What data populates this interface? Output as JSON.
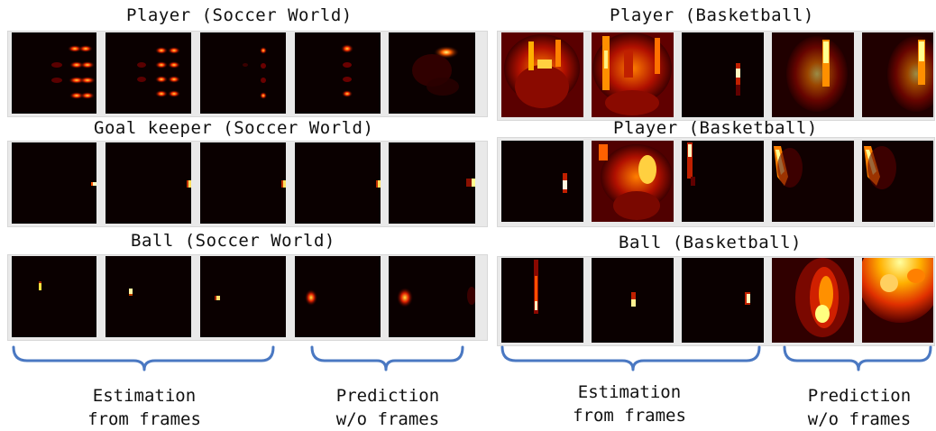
{
  "colors": {
    "heatmap_background": "#0a0000",
    "bracket": "#4a78c2"
  },
  "rows": [
    {
      "title": "Player (Soccer World)"
    },
    {
      "title": "Goal keeper (Soccer World)"
    },
    {
      "title": "Ball (Soccer World)"
    },
    {
      "title": "Player (Basketball)"
    },
    {
      "title": "Player (Basketball)"
    },
    {
      "title": "Ball (Basketball)"
    }
  ],
  "groups": [
    {
      "line1": "Estimation",
      "line2": "from frames"
    },
    {
      "line1": "Prediction",
      "line2": "w/o frames"
    },
    {
      "line1": "Estimation",
      "line2": "from frames"
    },
    {
      "line1": "Prediction",
      "line2": "w/o frames"
    }
  ]
}
